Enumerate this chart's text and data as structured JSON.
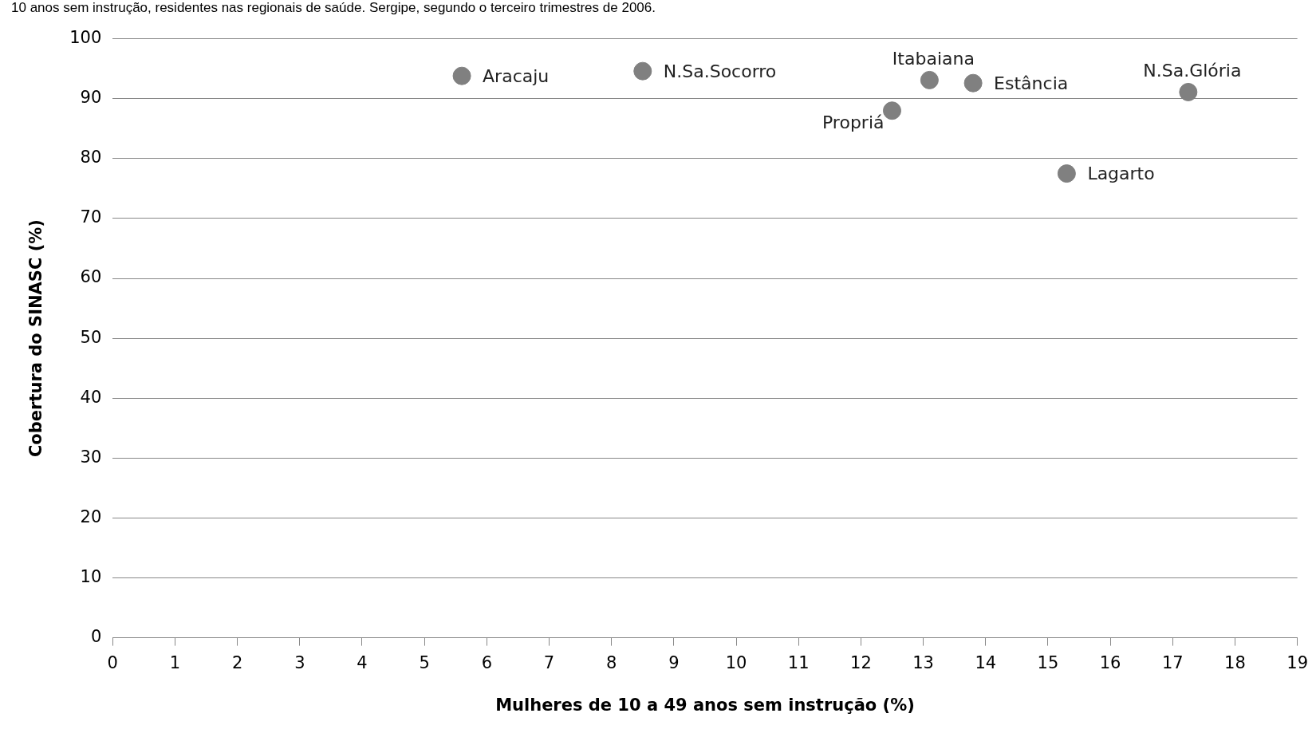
{
  "chart_data": {
    "type": "scatter",
    "title": "10 anos sem instrução, residentes nas regionais de saúde. Sergipe, segundo o terceiro trimestres de 2006.",
    "xlabel": "Mulheres de 10 a 49 anos sem instrução (%)",
    "ylabel": "Cobertura do SINASC (%)",
    "series": [
      {
        "color": "#808080",
        "x": [
          5.6,
          8.5,
          12.5,
          13.1,
          13.8,
          15.3,
          17.25
        ],
        "values": [
          93.8,
          94.6,
          88.0,
          93.1,
          92.6,
          77.5,
          91.1
        ]
      }
    ],
    "annotations": [
      {
        "text": "Aracaju",
        "x": 5.6,
        "y": 93.8
      },
      {
        "text": "N.Sa.Socorro",
        "x": 8.5,
        "y": 94.6
      },
      {
        "text": "Propriá",
        "x": 12.5,
        "y": 88.0
      },
      {
        "text": "Itabaiana",
        "x": 13.1,
        "y": 93.1
      },
      {
        "text": "Estância",
        "x": 13.8,
        "y": 92.6
      },
      {
        "text": "Lagarto",
        "x": 15.3,
        "y": 77.5
      },
      {
        "text": "N.Sa.Glória",
        "x": 17.25,
        "y": 91.1
      }
    ],
    "xlim": [
      0,
      19
    ],
    "xticks": [
      0,
      1,
      2,
      3,
      4,
      5,
      6,
      7,
      8,
      9,
      10,
      11,
      12,
      13,
      14,
      15,
      16,
      17,
      18,
      19
    ],
    "ylim": [
      0,
      100
    ],
    "yticks": [
      0,
      10,
      20,
      30,
      40,
      50,
      60,
      70,
      80,
      90,
      100
    ],
    "grid": "y",
    "marker": "circle",
    "legend": false
  }
}
